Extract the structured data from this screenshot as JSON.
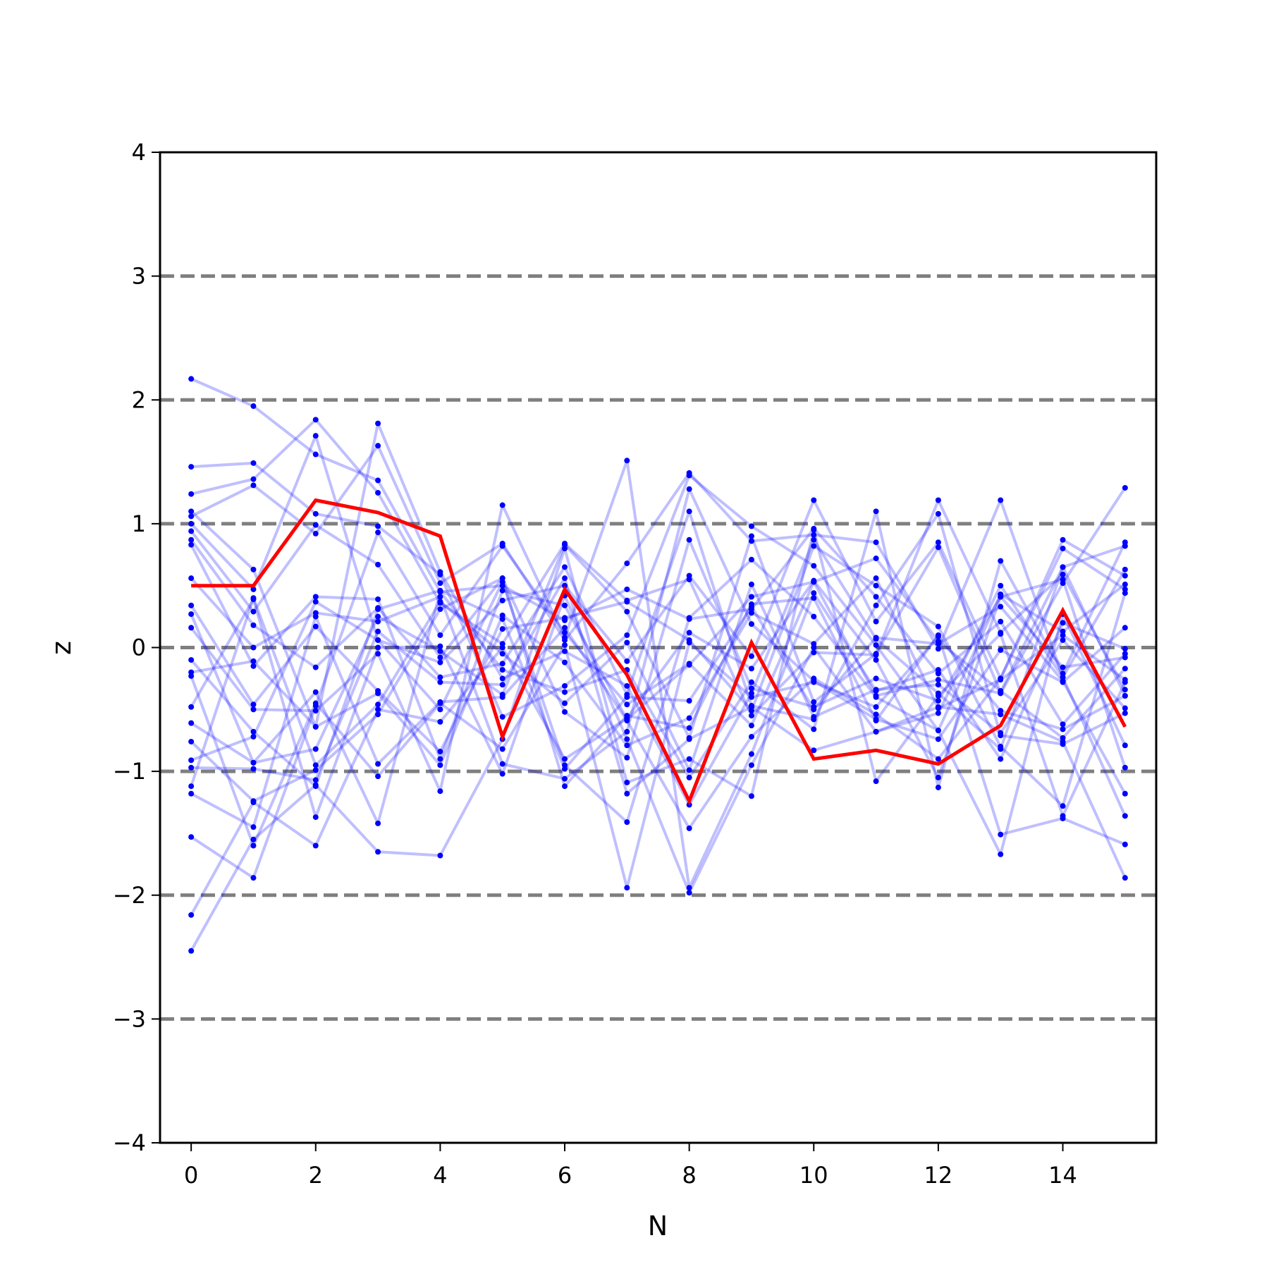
{
  "chart_data": {
    "type": "line",
    "title": "",
    "xlabel": "N",
    "ylabel": "z",
    "xlim": [
      -0.5,
      15.5
    ],
    "ylim": [
      -4,
      4
    ],
    "xticks": [
      0,
      2,
      4,
      6,
      8,
      10,
      12,
      14
    ],
    "xtick_labels": [
      "0",
      "2",
      "4",
      "6",
      "8",
      "10",
      "12",
      "14"
    ],
    "yticks": [
      -4,
      -3,
      -2,
      -1,
      0,
      1,
      2,
      3,
      4
    ],
    "ytick_labels": [
      "−4",
      "−3",
      "−2",
      "−1",
      "0",
      "1",
      "2",
      "3",
      "4"
    ],
    "reference_lines": [
      -3,
      -2,
      -1,
      0,
      1,
      2,
      3
    ],
    "x": [
      0,
      1,
      2,
      3,
      4,
      5,
      6,
      7,
      8,
      9,
      10,
      11,
      12,
      13,
      14,
      15
    ],
    "highlight_series": {
      "values": [
        0.5,
        0.5,
        1.19,
        1.09,
        0.9,
        -0.72,
        0.47,
        -0.22,
        -1.24,
        0.04,
        -0.9,
        -0.83,
        -0.94,
        -0.63,
        0.3,
        -0.64
      ]
    },
    "background_series": [
      [
        2.17,
        1.95,
        1.56,
        1.35,
        0.45,
        0.5,
        0.22,
        0.47,
        0.23,
        0.31,
        0.96,
        0.41,
        -0.21,
        0.21,
        -0.62,
        -0.05
      ],
      [
        1.46,
        1.49,
        1.08,
        0.98,
        0.59,
        -0.56,
        -0.31,
        0.1,
        1.39,
        0.98,
        0.66,
        0.02,
        -0.67,
        0.43,
        0.13,
        0.51
      ],
      [
        1.24,
        1.36,
        1.84,
        1.25,
        0.36,
        0.03,
        0.84,
        0.38,
        0.55,
        -0.55,
        -0.04,
        -0.06,
        1.19,
        0.12,
        0.59,
        -0.34
      ],
      [
        1.1,
        0.63,
        -0.64,
        1.81,
        0.61,
        -0.25,
        -0.03,
        -0.31,
        -1.27,
        -0.37,
        0.87,
        0.07,
        -0.37,
        -0.82,
        0.65,
        0.82
      ],
      [
        1.06,
        1.31,
        0.92,
        1.63,
        0.52,
        0.84,
        0.06,
        0.68,
        1.41,
        0.86,
        0.91,
        0.85,
        -0.01,
        1.19,
        -0.24,
        0.63
      ],
      [
        1.0,
        0.47,
        1.71,
        0.06,
        -0.12,
        0.38,
        0.5,
        -0.11,
        0.58,
        -0.07,
        1.19,
        0.21,
        0.85,
        -0.25,
        0.87,
        0.58
      ],
      [
        0.94,
        0.29,
        0.99,
        0.67,
        -0.08,
        0.56,
        -0.52,
        -0.89,
        0.87,
        -0.33,
        -0.48,
        -0.25,
        -0.43,
        0.41,
        -0.16,
        -0.08
      ],
      [
        0.87,
        0.18,
        -0.16,
        0.32,
        -0.24,
        -0.13,
        0.65,
        -0.38,
        1.1,
        -0.47,
        -0.58,
        0.34,
        1.08,
        -0.71,
        -0.78,
        -0.53
      ],
      [
        0.83,
        -0.15,
        0.41,
        0.39,
        -0.9,
        0.46,
        0.34,
        -0.58,
        -0.14,
        0.41,
        0.53,
        -0.39,
        -0.26,
        -0.37,
        0.52,
        1.29
      ],
      [
        0.56,
        0.0,
        0.28,
        0.21,
        0.41,
        -0.94,
        -1.06,
        -0.68,
        1.28,
        0.19,
        -0.27,
        -0.58,
        -0.74,
        -0.02,
        -0.28,
        0.16
      ],
      [
        0.34,
        -0.46,
        0.17,
        -0.35,
        -0.84,
        0.15,
        0.24,
        0.37,
        0.06,
        -0.51,
        0.82,
        0.5,
        0.17,
        -0.8,
        -1.28,
        0.44
      ],
      [
        0.27,
        -0.93,
        -0.82,
        0.25,
        -0.03,
        -0.38,
        0.83,
        0.29,
        -0.73,
        0.9,
        -0.44,
        -0.05,
        0.81,
        -0.36,
        0.65,
        -0.39
      ],
      [
        0.16,
        -0.5,
        -0.51,
        -0.05,
        -1.16,
        1.15,
        0.08,
        1.51,
        -1.94,
        -0.86,
        0.44,
        -0.35,
        -0.18,
        -0.9,
        0.2,
        -0.01
      ],
      [
        -0.1,
        -0.68,
        -1.12,
        0.31,
        0.46,
        0.23,
        -0.98,
        -0.4,
        -0.43,
        0.33,
        -0.5,
        0.08,
        0.03,
        0.33,
        -0.27,
        -1.18
      ],
      [
        -0.2,
        -0.11,
        -0.64,
        -0.37,
        -0.95,
        0.26,
        -0.12,
        -0.79,
        -0.57,
        0.28,
        0.03,
        0.56,
        -0.49,
        -0.26,
        0.1,
        -0.26
      ],
      [
        -0.23,
        -1.6,
        -0.45,
        -1.04,
        -0.45,
        -0.82,
        0.02,
        -1.94,
        0.04,
        -0.4,
        -0.28,
        -0.48,
        0.09,
        -0.51,
        -0.66,
        -0.39
      ],
      [
        -0.48,
        0.39,
        -1.37,
        0.0,
        0.01,
        -1.02,
        0.42,
        -0.74,
        -1.98,
        -0.95,
        0.0,
        -0.68,
        -0.53,
        0.5,
        -0.24,
        -1.36
      ],
      [
        -0.61,
        -0.93,
        -0.36,
        -1.42,
        0.45,
        -0.18,
        -0.36,
        -0.18,
        -1.05,
        -0.28,
        -0.66,
        1.1,
        -1.13,
        0.7,
        -0.21,
        0.85
      ],
      [
        -0.76,
        -1.24,
        -0.99,
        -0.54,
        0.31,
        0.56,
        -1.12,
        -0.55,
        -0.65,
        0.35,
        0.4,
        -0.59,
        0.1,
        -1.51,
        -1.38,
        -1.59
      ],
      [
        -0.91,
        -0.72,
        0.37,
        0.06,
        -0.5,
        0.53,
        -0.95,
        -1.41,
        0.24,
        0.71,
        0.25,
        -0.4,
        -0.67,
        -1.67,
        0.27,
        -0.79
      ],
      [
        -0.97,
        -0.98,
        -1.07,
        0.13,
        -0.28,
        -0.3,
        0.56,
        -1.18,
        -0.74,
        -0.48,
        -0.83,
        -0.68,
        -0.48,
        -0.54,
        -0.76,
        -1.86
      ],
      [
        -1.12,
        0.4,
        -0.95,
        -0.46,
        0.37,
        -0.05,
        -0.45,
        0.04,
        -0.99,
        0.51,
        -0.56,
        -0.34,
        -0.3,
        -0.69,
        0.06,
        -0.49
      ],
      [
        -1.18,
        -1.45,
        0.25,
        -0.94,
        -0.44,
        -0.4,
        0.16,
        -0.59,
        -1.46,
        -0.72,
        -0.25,
        -0.54,
        -0.9,
        -0.25,
        0.8,
        0.47
      ],
      [
        -1.53,
        -1.86,
        -0.47,
        0.93,
        0.1,
        0.82,
        0.12,
        -0.46,
        -0.13,
        -0.63,
        0.53,
        0.72,
        0.05,
        -0.35,
        -0.73,
        -0.17
      ],
      [
        -2.16,
        -1.25,
        -1.6,
        -0.5,
        -0.6,
        0.0,
        -0.9,
        -0.57,
        0.12,
        -0.17,
        0.54,
        -0.1,
        -1.05,
        0.41,
        0.55,
        -0.97
      ],
      [
        -2.45,
        -1.55,
        -1.11,
        -1.65,
        -1.68,
        -0.74,
        0.8,
        -1.09,
        -0.9,
        -1.2,
        0.95,
        -1.08,
        -0.39,
        0.11,
        -1.36,
        -0.28
      ]
    ]
  }
}
